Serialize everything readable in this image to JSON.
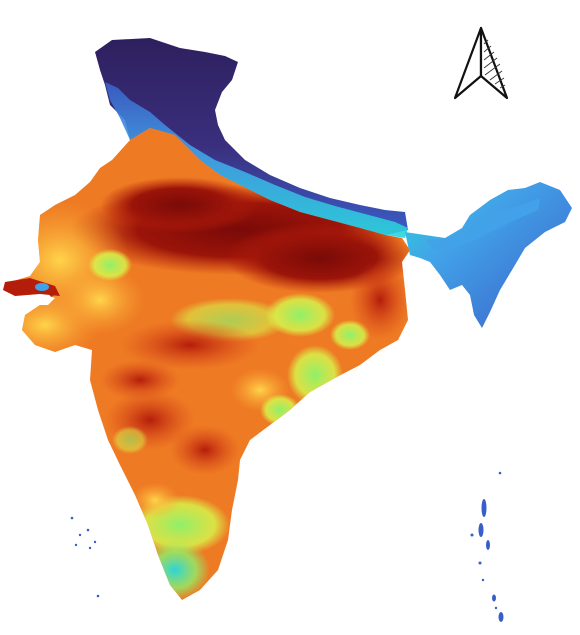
{
  "map": {
    "subject": "India",
    "type": "heatmap",
    "north_arrow": "N",
    "palette": {
      "darkest_red": "#7a0a08",
      "dark_red": "#b51d0b",
      "red_orange": "#d8431a",
      "orange": "#ee7a23",
      "light_orange": "#f9a334",
      "yellow": "#ffd54a",
      "yellow_green": "#d9f24a",
      "green": "#8ff06a",
      "cyan": "#2ad5d9",
      "light_blue": "#42a2e8",
      "blue": "#3a5ec8",
      "indigo": "#3a2f7e",
      "dark_indigo": "#2e205e"
    },
    "icons": [
      "north-arrow-icon"
    ]
  }
}
